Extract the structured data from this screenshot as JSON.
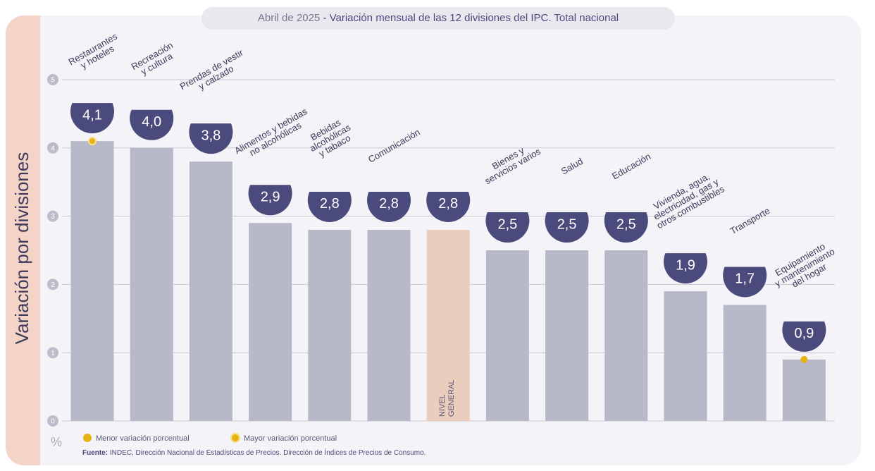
{
  "chart_data": {
    "type": "bar",
    "date": "Abril de 2025",
    "title": "- Variación mensual de las 12 divisiones del IPC. Total nacional",
    "y_label": "Variación por divisiones",
    "unit_label": "%",
    "categories": [
      [
        "Restaurantes",
        "y hoteles"
      ],
      [
        "Recreación",
        "y cultura"
      ],
      [
        "Prendas de vestir",
        "y calzado"
      ],
      [
        "Alimentos y bebidas",
        "no alcohólicas"
      ],
      [
        "Bebidas",
        "alcohólicas",
        "y tabaco"
      ],
      [
        "Comunicación"
      ],
      [
        "NIVEL",
        "GENERAL"
      ],
      [
        "Bienes y",
        "servicios varios"
      ],
      [
        "Salud"
      ],
      [
        "Educación"
      ],
      [
        "Vivienda, agua,",
        "electricidad, gas y",
        "otros combustibles"
      ],
      [
        "Transporte"
      ],
      [
        "Equipamiento",
        "y mantenimiento",
        "del hogar"
      ]
    ],
    "values": [
      4.1,
      4.0,
      3.8,
      2.9,
      2.8,
      2.8,
      2.8,
      2.5,
      2.5,
      2.5,
      1.9,
      1.7,
      0.9
    ],
    "value_labels": [
      "4,1",
      "4,0",
      "3,8",
      "2,9",
      "2,8",
      "2,8",
      "2,8",
      "2,5",
      "2,5",
      "2,5",
      "1,9",
      "1,7",
      "0,9"
    ],
    "color": "#b7b9c9",
    "reference": {
      "index": 6,
      "color": "#ebcdbd"
    },
    "badge_color": "#4b4a7c",
    "ylim": [
      0,
      5
    ],
    "yticks": [
      0,
      1,
      2,
      3,
      4,
      5
    ],
    "grid": true,
    "legend": [
      {
        "label": "Menor variación porcentual",
        "index": 12,
        "color": "#e8b215",
        "ring": false
      },
      {
        "label": "Mayor variación porcentual",
        "index": 0,
        "color": "#e8b215",
        "ring": true
      }
    ],
    "source_label": "Fuente:",
    "source": "INDEC, Dirección Nacional de Estadísticas de Precios. Dirección de Índices de Precios de Consumo."
  }
}
